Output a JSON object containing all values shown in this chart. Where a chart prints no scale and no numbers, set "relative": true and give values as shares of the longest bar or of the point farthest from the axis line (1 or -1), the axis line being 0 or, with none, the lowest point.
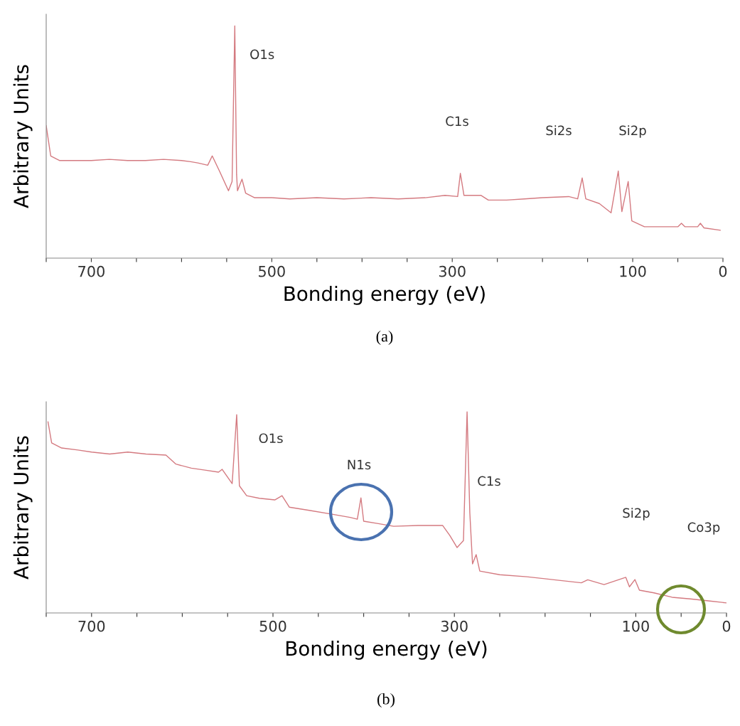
{
  "chart_data": [
    {
      "type": "line",
      "xlabel": "Bonding energy (eV)",
      "ylabel": "Arbitrary Units",
      "relative": true,
      "grid": false,
      "legend": false,
      "marker": "none",
      "line_style": "solid",
      "xlim": [
        750,
        0
      ],
      "xticks": [
        {
          "value": 750,
          "label": null
        },
        700,
        {
          "value": 650,
          "label": null
        },
        {
          "value": 600,
          "label": null
        },
        {
          "value": 550,
          "label": null
        },
        500,
        {
          "value": 450,
          "label": null
        },
        {
          "value": 400,
          "label": null
        },
        {
          "value": 350,
          "label": null
        },
        300,
        {
          "value": 250,
          "label": null
        },
        {
          "value": 200,
          "label": null
        },
        {
          "value": 150,
          "label": null
        },
        100,
        {
          "value": 50,
          "label": null
        },
        0
      ],
      "series": [
        {
          "color": "#d47a80",
          "x": [
            750,
            745,
            735,
            720,
            700,
            680,
            660,
            640,
            620,
            600,
            590,
            582,
            571,
            566,
            558,
            548,
            544,
            541,
            539,
            538,
            533,
            529,
            519,
            500,
            480,
            450,
            420,
            390,
            360,
            330,
            308,
            294,
            291,
            287,
            268,
            260,
            240,
            220,
            200,
            171,
            161,
            156,
            152,
            137,
            124,
            116,
            112,
            105,
            101,
            87,
            70,
            50,
            46,
            42,
            28,
            25,
            21,
            3
          ],
          "values": [
            0.57,
            0.44,
            0.42,
            0.42,
            0.42,
            0.425,
            0.42,
            0.42,
            0.425,
            0.42,
            0.415,
            0.41,
            0.4,
            0.44,
            0.375,
            0.29,
            0.33,
            1.0,
            0.36,
            0.29,
            0.34,
            0.28,
            0.26,
            0.26,
            0.255,
            0.26,
            0.255,
            0.26,
            0.255,
            0.26,
            0.27,
            0.265,
            0.365,
            0.27,
            0.27,
            0.25,
            0.25,
            0.255,
            0.26,
            0.265,
            0.255,
            0.345,
            0.255,
            0.235,
            0.195,
            0.375,
            0.2,
            0.33,
            0.16,
            0.135,
            0.135,
            0.135,
            0.15,
            0.135,
            0.135,
            0.15,
            0.13,
            0.12
          ]
        }
      ],
      "annotations": [
        {
          "text": "O1s",
          "x": 541,
          "y": 1.0
        },
        "C1s",
        "Si2s",
        "Si2p",
        "(a)"
      ]
    },
    {
      "type": "line",
      "xlabel": "Bonding energy (eV)",
      "ylabel": "Arbitrary Units",
      "relative": true,
      "grid": false,
      "legend": false,
      "marker": "none",
      "line_style": "solid",
      "xlim": [
        750,
        0
      ],
      "xticks": [
        {
          "value": 750,
          "label": null
        },
        700,
        {
          "value": 650,
          "label": null
        },
        {
          "value": 600,
          "label": null
        },
        {
          "value": 550,
          "label": null
        },
        500,
        {
          "value": 450,
          "label": null
        },
        {
          "value": 400,
          "label": null
        },
        {
          "value": 350,
          "label": null
        },
        300,
        {
          "value": 250,
          "label": null
        },
        {
          "value": 200,
          "label": null
        },
        {
          "value": 150,
          "label": null
        },
        100,
        {
          "value": 50,
          "label": null
        },
        0
      ],
      "series": [
        {
          "color": "#d47a80",
          "x": [
            748,
            744,
            733,
            715,
            700,
            680,
            660,
            640,
            618,
            607,
            590,
            575,
            560,
            556,
            545,
            540,
            537,
            529,
            515,
            498,
            490,
            482,
            460,
            435,
            415,
            407,
            403,
            400,
            385,
            367,
            340,
            313,
            305,
            297,
            290,
            286,
            283,
            280,
            276,
            272,
            250,
            220,
            190,
            160,
            153,
            135,
            111,
            107,
            101,
            96,
            80,
            60,
            40,
            20,
            0
          ],
          "values": [
            0.95,
            0.845,
            0.82,
            0.81,
            0.8,
            0.79,
            0.8,
            0.79,
            0.785,
            0.74,
            0.72,
            0.71,
            0.7,
            0.714,
            0.643,
            0.986,
            0.632,
            0.583,
            0.57,
            0.562,
            0.583,
            0.526,
            0.51,
            0.491,
            0.475,
            0.466,
            0.572,
            0.456,
            0.445,
            0.431,
            0.435,
            0.435,
            0.385,
            0.325,
            0.36,
            1.0,
            0.5,
            0.244,
            0.29,
            0.208,
            0.19,
            0.18,
            0.165,
            0.15,
            0.165,
            0.141,
            0.177,
            0.13,
            0.166,
            0.113,
            0.1,
            0.078,
            0.07,
            0.06,
            0.05
          ]
        }
      ],
      "annotations": [
        {
          "text": "O1s",
          "x": 540,
          "y": 0.986
        },
        "N1s",
        "C1s",
        "Si2p",
        "Co3p",
        "(b)"
      ]
    }
  ]
}
